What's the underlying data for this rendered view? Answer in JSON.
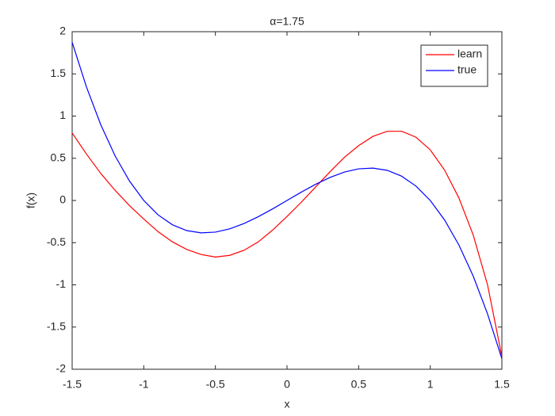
{
  "chart_data": {
    "type": "line",
    "title": "α=1.75",
    "xlabel": "x",
    "ylabel": "f(x)",
    "x": [
      -1.5,
      -1.4,
      -1.3,
      -1.2,
      -1.1,
      -1.0,
      -0.9,
      -0.8,
      -0.7,
      -0.6,
      -0.5,
      -0.4,
      -0.3,
      -0.2,
      -0.1,
      0,
      0.1,
      0.2,
      0.3,
      0.4,
      0.5,
      0.6,
      0.7,
      0.8,
      0.9,
      1.0,
      1.1,
      1.2,
      1.3,
      1.4,
      1.5
    ],
    "series": [
      {
        "name": "learn",
        "color": "#ff0000",
        "values": [
          0.8,
          0.55,
          0.32,
          0.12,
          -0.06,
          -0.22,
          -0.37,
          -0.49,
          -0.58,
          -0.64,
          -0.67,
          -0.65,
          -0.59,
          -0.49,
          -0.35,
          -0.19,
          -0.02,
          0.16,
          0.34,
          0.51,
          0.65,
          0.76,
          0.82,
          0.82,
          0.75,
          0.6,
          0.36,
          0.03,
          -0.41,
          -1.0,
          -1.85
        ]
      },
      {
        "name": "true",
        "color": "#0000ff",
        "values": [
          1.875,
          1.344,
          0.897,
          0.528,
          0.231,
          0,
          -0.171,
          -0.288,
          -0.357,
          -0.384,
          -0.375,
          -0.336,
          -0.273,
          -0.192,
          -0.099,
          0,
          0.099,
          0.192,
          0.273,
          0.336,
          0.375,
          0.384,
          0.357,
          0.288,
          0.171,
          0,
          -0.231,
          -0.528,
          -0.897,
          -1.344,
          -1.875
        ]
      }
    ],
    "xlim": [
      -1.5,
      1.5
    ],
    "xticks": [
      -1.5,
      -1,
      -0.5,
      0,
      0.5,
      1,
      1.5
    ],
    "ylim": [
      -2,
      2
    ],
    "yticks": [
      -2,
      -1.5,
      -1,
      -0.5,
      0,
      0.5,
      1,
      1.5,
      2
    ],
    "grid": false,
    "legend": "northeast"
  }
}
